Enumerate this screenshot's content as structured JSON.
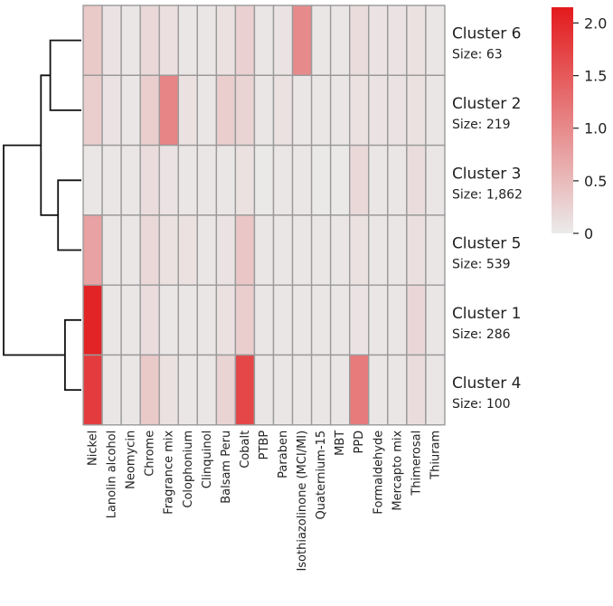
{
  "chart_data": {
    "type": "heatmap",
    "title": "",
    "columns": [
      "Nickel",
      "Lanolin alcohol",
      "Neomycin",
      "Chrome",
      "Fragrance mix",
      "Colophonium",
      "Clinquinol",
      "Balsam Peru",
      "Cobalt",
      "PTBP",
      "Paraben",
      "Isothiazolinone (MCI/MI)",
      "Quaternium-15",
      "MBT",
      "PPD",
      "Formaldehyde",
      "Mercapto mix",
      "Thimerosal",
      "Thiuram"
    ],
    "rows": [
      {
        "name": "Cluster 6",
        "size_label": "Size: 63",
        "values": [
          0.35,
          0.08,
          0.05,
          0.2,
          0.12,
          0.05,
          0.05,
          0.1,
          0.28,
          0.05,
          0.08,
          1.0,
          0.05,
          0.05,
          0.15,
          0.08,
          0.08,
          0.1,
          0.05
        ]
      },
      {
        "name": "Cluster 2",
        "size_label": "Size: 219",
        "values": [
          0.3,
          0.08,
          0.05,
          0.3,
          1.05,
          0.1,
          0.05,
          0.3,
          0.25,
          0.05,
          0.1,
          0.05,
          0.05,
          0.05,
          0.1,
          0.08,
          0.08,
          0.1,
          0.05
        ]
      },
      {
        "name": "Cluster 3",
        "size_label": "Size: 1,862",
        "values": [
          0.05,
          0.05,
          0.05,
          0.15,
          0.08,
          0.05,
          0.05,
          0.05,
          0.1,
          0.03,
          0.05,
          0.05,
          0.03,
          0.03,
          0.2,
          0.05,
          0.05,
          0.15,
          0.05
        ]
      },
      {
        "name": "Cluster 5",
        "size_label": "Size: 539",
        "values": [
          0.75,
          0.05,
          0.05,
          0.2,
          0.1,
          0.1,
          0.05,
          0.08,
          0.38,
          0.05,
          0.05,
          0.05,
          0.05,
          0.05,
          0.1,
          0.05,
          0.05,
          0.12,
          0.05
        ]
      },
      {
        "name": "Cluster 1",
        "size_label": "Size: 286",
        "values": [
          2.05,
          0.05,
          0.05,
          0.15,
          0.05,
          0.05,
          0.05,
          0.1,
          0.3,
          0.05,
          0.05,
          0.05,
          0.05,
          0.05,
          0.08,
          0.05,
          0.05,
          0.22,
          0.05
        ]
      },
      {
        "name": "Cluster 4",
        "size_label": "Size: 100",
        "values": [
          1.8,
          0.05,
          0.05,
          0.35,
          0.1,
          0.05,
          0.05,
          0.25,
          1.7,
          0.05,
          0.05,
          0.05,
          0.05,
          0.05,
          1.15,
          0.05,
          0.05,
          0.15,
          0.05
        ]
      }
    ],
    "colorbar": {
      "min": 0,
      "max": 2.15,
      "ticks": [
        {
          "value": 0,
          "label": "0"
        },
        {
          "value": 0.5,
          "label": "0.5"
        },
        {
          "value": 1.0,
          "label": "1.0"
        },
        {
          "value": 1.5,
          "label": "1.5"
        },
        {
          "value": 2.0,
          "label": "2.0"
        }
      ],
      "low_color": "#ebebeb",
      "high_color": "#e31a1c"
    },
    "dendrogram": {
      "order": [
        "Cluster 6",
        "Cluster 2",
        "Cluster 3",
        "Cluster 5",
        "Cluster 1",
        "Cluster 4"
      ],
      "merges": [
        {
          "a": "Cluster 6",
          "b": "Cluster 2",
          "height": 0.4
        },
        {
          "a": "Cluster 3",
          "b": "Cluster 5",
          "height": 0.3
        },
        {
          "a": "merge-0",
          "b": "merge-1",
          "height": 0.52
        },
        {
          "a": "Cluster 1",
          "b": "Cluster 4",
          "height": 0.21
        },
        {
          "a": "merge-2",
          "b": "merge-3",
          "height": 1.0
        }
      ]
    }
  }
}
